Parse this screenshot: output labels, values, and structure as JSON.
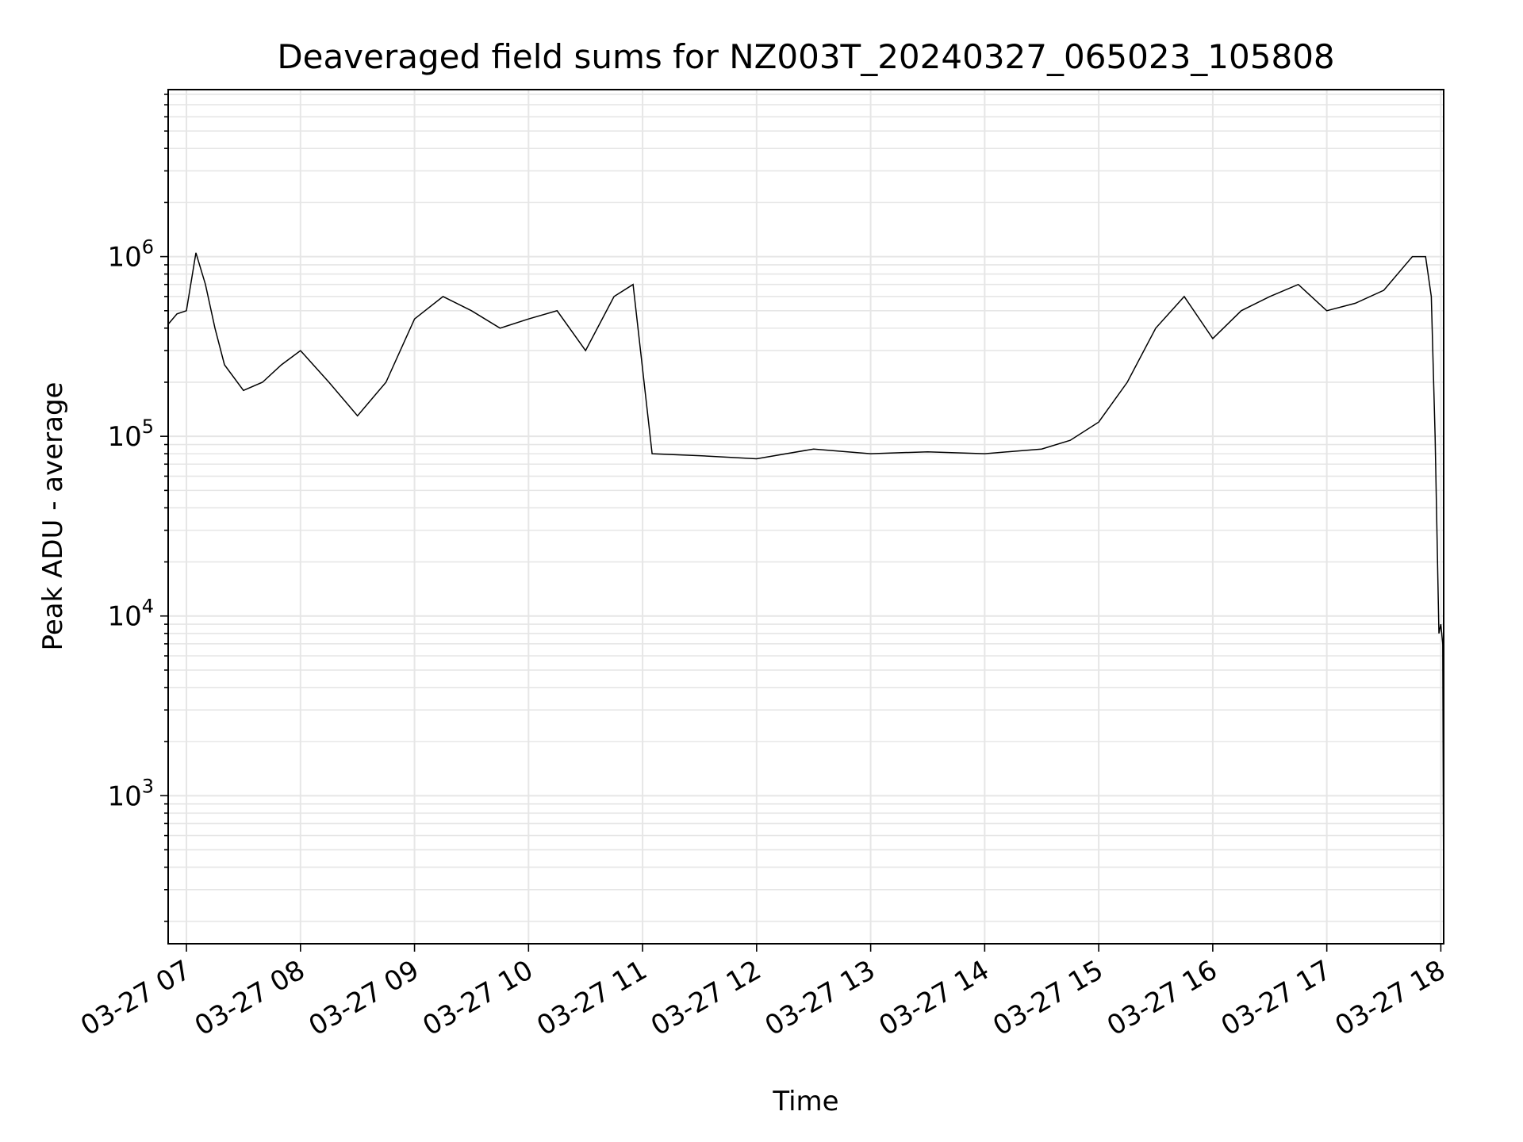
{
  "chart_data": {
    "type": "line",
    "title": "Deaveraged field sums for NZ003T_20240327_065023_105808",
    "xlabel": "Time",
    "ylabel": "Peak ADU - average",
    "yscale": "log",
    "xlim": [
      "2024-03-27T06:50:23",
      "2024-03-27T18:01:30"
    ],
    "ylim": [
      150,
      8500000
    ],
    "grid": true,
    "grid_minor": true,
    "x_ticks": [
      {
        "label": "03-27 07",
        "value": "2024-03-27T07:00:00"
      },
      {
        "label": "03-27 08",
        "value": "2024-03-27T08:00:00"
      },
      {
        "label": "03-27 09",
        "value": "2024-03-27T09:00:00"
      },
      {
        "label": "03-27 10",
        "value": "2024-03-27T10:00:00"
      },
      {
        "label": "03-27 11",
        "value": "2024-03-27T11:00:00"
      },
      {
        "label": "03-27 12",
        "value": "2024-03-27T12:00:00"
      },
      {
        "label": "03-27 13",
        "value": "2024-03-27T13:00:00"
      },
      {
        "label": "03-27 14",
        "value": "2024-03-27T14:00:00"
      },
      {
        "label": "03-27 15",
        "value": "2024-03-27T15:00:00"
      },
      {
        "label": "03-27 16",
        "value": "2024-03-27T16:00:00"
      },
      {
        "label": "03-27 17",
        "value": "2024-03-27T17:00:00"
      },
      {
        "label": "03-27 18",
        "value": "2024-03-27T18:00:00"
      }
    ],
    "y_ticks": [
      {
        "base": "10",
        "exp": "3",
        "value": 1000
      },
      {
        "base": "10",
        "exp": "4",
        "value": 10000
      },
      {
        "base": "10",
        "exp": "5",
        "value": 100000
      },
      {
        "base": "10",
        "exp": "6",
        "value": 1000000
      }
    ],
    "series": [
      {
        "color": "#000000",
        "x": [
          "2024-03-27T06:50:23",
          "2024-03-27T06:55:00",
          "2024-03-27T07:00:00",
          "2024-03-27T07:05:00",
          "2024-03-27T07:10:00",
          "2024-03-27T07:15:00",
          "2024-03-27T07:20:00",
          "2024-03-27T07:30:00",
          "2024-03-27T07:40:00",
          "2024-03-27T07:50:00",
          "2024-03-27T08:00:00",
          "2024-03-27T08:15:00",
          "2024-03-27T08:30:00",
          "2024-03-27T08:45:00",
          "2024-03-27T09:00:00",
          "2024-03-27T09:15:00",
          "2024-03-27T09:30:00",
          "2024-03-27T09:45:00",
          "2024-03-27T10:00:00",
          "2024-03-27T10:15:00",
          "2024-03-27T10:30:00",
          "2024-03-27T10:45:00",
          "2024-03-27T10:55:00",
          "2024-03-27T11:05:00",
          "2024-03-27T11:30:00",
          "2024-03-27T12:00:00",
          "2024-03-27T12:30:00",
          "2024-03-27T13:00:00",
          "2024-03-27T13:30:00",
          "2024-03-27T14:00:00",
          "2024-03-27T14:30:00",
          "2024-03-27T14:45:00",
          "2024-03-27T15:00:00",
          "2024-03-27T15:15:00",
          "2024-03-27T15:30:00",
          "2024-03-27T15:45:00",
          "2024-03-27T16:00:00",
          "2024-03-27T16:15:00",
          "2024-03-27T16:30:00",
          "2024-03-27T16:45:00",
          "2024-03-27T17:00:00",
          "2024-03-27T17:15:00",
          "2024-03-27T17:30:00",
          "2024-03-27T17:45:00",
          "2024-03-27T17:52:00",
          "2024-03-27T17:55:00",
          "2024-03-27T17:57:00",
          "2024-03-27T17:59:00",
          "2024-03-27T18:00:00",
          "2024-03-27T18:01:00",
          "2024-03-27T18:01:30"
        ],
        "y": [
          420000,
          480000,
          500000,
          1050000,
          700000,
          400000,
          250000,
          180000,
          200000,
          250000,
          300000,
          200000,
          130000,
          200000,
          450000,
          600000,
          500000,
          400000,
          450000,
          500000,
          300000,
          600000,
          700000,
          80000,
          78000,
          75000,
          85000,
          80000,
          82000,
          80000,
          85000,
          95000,
          120000,
          200000,
          400000,
          600000,
          350000,
          500000,
          600000,
          700000,
          500000,
          550000,
          650000,
          1000000,
          1000000,
          600000,
          100000,
          8000,
          9000,
          7000,
          250
        ]
      }
    ]
  }
}
